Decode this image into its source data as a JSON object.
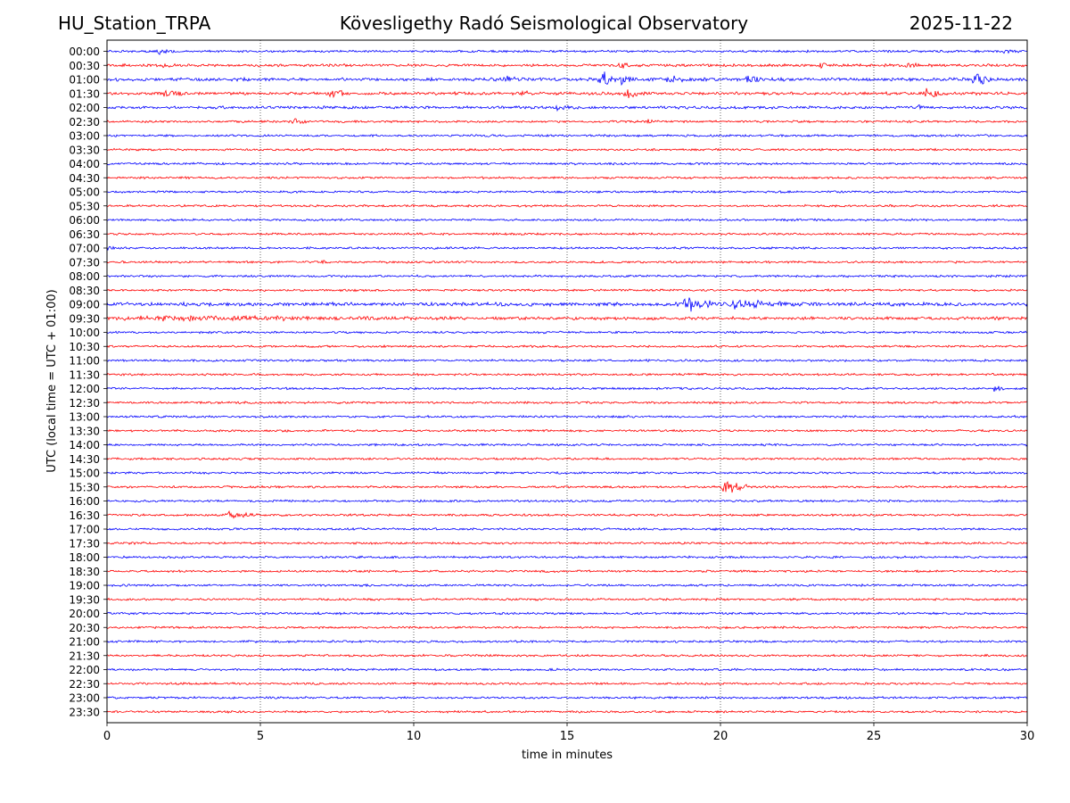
{
  "header": {
    "station": "HU_Station_TRPA",
    "observatory": "Kövesligethy Radó Seismological Observatory",
    "date": "2025-11-22"
  },
  "chart_data": {
    "type": "line",
    "title": "Kövesligethy Radó Seismological Observatory",
    "xlabel": "time in minutes",
    "ylabel": "UTC (local time = UTC + 01:00)",
    "xlim": [
      0,
      30
    ],
    "xticks": [
      0,
      5,
      10,
      15,
      20,
      25,
      30
    ],
    "grid": "vertical dotted at each x tick",
    "trace_colors": [
      "#0000ff",
      "#ff0000"
    ],
    "rows": [
      "00:00",
      "00:30",
      "01:00",
      "01:30",
      "02:00",
      "02:30",
      "03:00",
      "03:30",
      "04:00",
      "04:30",
      "05:00",
      "05:30",
      "06:00",
      "06:30",
      "07:00",
      "07:30",
      "08:00",
      "08:30",
      "09:00",
      "09:30",
      "10:00",
      "10:30",
      "11:00",
      "11:30",
      "12:00",
      "12:30",
      "13:00",
      "13:30",
      "14:00",
      "14:30",
      "15:00",
      "15:30",
      "16:00",
      "16:30",
      "17:00",
      "17:30",
      "18:00",
      "18:30",
      "19:00",
      "19:30",
      "20:00",
      "20:30",
      "21:00",
      "21:30",
      "22:00",
      "22:30",
      "23:00",
      "23:30"
    ],
    "base_noise": 1.0,
    "row_noise": {
      "00:30": 1.3,
      "01:00": 1.5,
      "01:30": 1.4,
      "02:00": 1.3,
      "09:00": 1.7,
      "09:30": 1.4
    },
    "events": [
      {
        "row": "00:00",
        "t": 1.6,
        "dur": 0.6,
        "amp": 2.5
      },
      {
        "row": "00:00",
        "t": 29.2,
        "dur": 0.6,
        "amp": 2.5
      },
      {
        "row": "00:30",
        "t": 1.7,
        "dur": 0.5,
        "amp": 2.5
      },
      {
        "row": "00:30",
        "t": 16.6,
        "dur": 0.6,
        "amp": 3.5
      },
      {
        "row": "00:30",
        "t": 23.2,
        "dur": 0.5,
        "amp": 3.5
      },
      {
        "row": "00:30",
        "t": 26.0,
        "dur": 0.6,
        "amp": 2.5
      },
      {
        "row": "01:00",
        "t": 12.8,
        "dur": 0.8,
        "amp": 3
      },
      {
        "row": "01:00",
        "t": 16.0,
        "dur": 0.7,
        "amp": 9
      },
      {
        "row": "01:00",
        "t": 16.7,
        "dur": 0.5,
        "amp": 5
      },
      {
        "row": "01:00",
        "t": 18.2,
        "dur": 1.0,
        "amp": 3
      },
      {
        "row": "01:00",
        "t": 20.8,
        "dur": 0.7,
        "amp": 4
      },
      {
        "row": "01:00",
        "t": 28.2,
        "dur": 0.6,
        "amp": 9
      },
      {
        "row": "01:30",
        "t": 1.8,
        "dur": 0.8,
        "amp": 3
      },
      {
        "row": "01:30",
        "t": 7.2,
        "dur": 0.8,
        "amp": 4.5
      },
      {
        "row": "01:30",
        "t": 13.5,
        "dur": 0.3,
        "amp": 4
      },
      {
        "row": "01:30",
        "t": 16.8,
        "dur": 0.8,
        "amp": 3.5
      },
      {
        "row": "01:30",
        "t": 26.6,
        "dur": 0.8,
        "amp": 3.5
      },
      {
        "row": "02:00",
        "t": 14.6,
        "dur": 0.6,
        "amp": 3
      },
      {
        "row": "02:00",
        "t": 26.3,
        "dur": 0.4,
        "amp": 3
      },
      {
        "row": "02:30",
        "t": 6.0,
        "dur": 0.5,
        "amp": 2.5
      },
      {
        "row": "02:30",
        "t": 17.4,
        "dur": 0.6,
        "amp": 2.5
      },
      {
        "row": "07:00",
        "t": 0.0,
        "dur": 0.3,
        "amp": 2.5
      },
      {
        "row": "07:30",
        "t": 7.0,
        "dur": 0.3,
        "amp": 2.5
      },
      {
        "row": "09:00",
        "t": 18.7,
        "dur": 1.2,
        "amp": 7
      },
      {
        "row": "09:00",
        "t": 20.0,
        "dur": 2.8,
        "amp": 4
      },
      {
        "row": "09:30",
        "t": 0.0,
        "dur": 11.5,
        "amp": 1.6
      },
      {
        "row": "12:00",
        "t": 28.9,
        "dur": 0.4,
        "amp": 6
      },
      {
        "row": "15:30",
        "t": 20.0,
        "dur": 1.1,
        "amp": 7
      },
      {
        "row": "16:30",
        "t": 3.8,
        "dur": 1.2,
        "amp": 3
      }
    ]
  }
}
